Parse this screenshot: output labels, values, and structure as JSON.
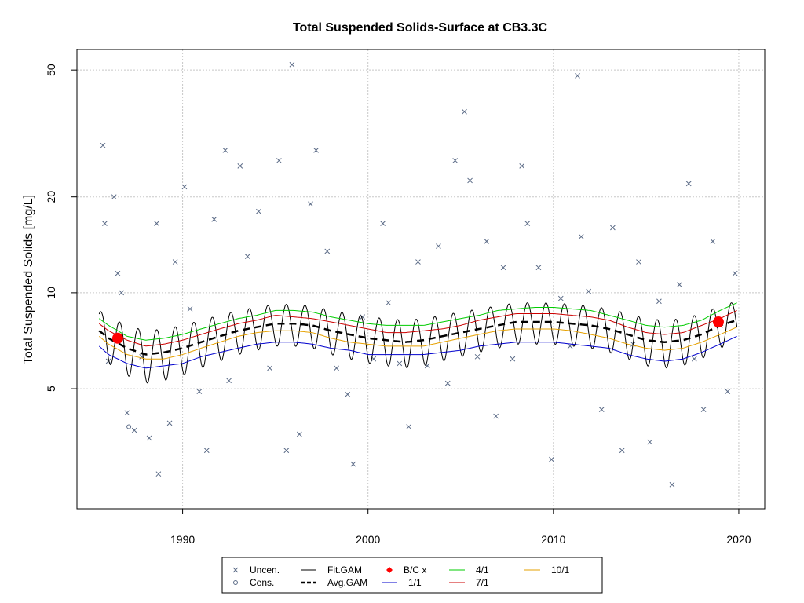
{
  "chart_data": {
    "type": "scatter",
    "title": "Total Suspended Solids-Surface at CB3.3C",
    "xlabel": "",
    "ylabel": "Total Suspended Solids [mg/L]",
    "y_scale": "log",
    "xlim": [
      1984.3,
      2021.4
    ],
    "ylim": [
      2.1,
      58
    ],
    "x_ticks": [
      "1990",
      "2000",
      "2010",
      "2020"
    ],
    "y_ticks": [
      "5",
      "10",
      "20",
      "50"
    ],
    "grid": true,
    "legend_position": "bottom",
    "legend": [
      {
        "label": "Uncen.",
        "symbol": "x",
        "color": "#5a6a86"
      },
      {
        "label": "Cens.",
        "symbol": "circle",
        "color": "#5a6a86"
      },
      {
        "label": "Fit.GAM",
        "symbol": "line",
        "color": "#000000"
      },
      {
        "label": "Avg.GAM",
        "symbol": "dashed-line",
        "color": "#000000"
      },
      {
        "label": "B/C x",
        "symbol": "diamond",
        "color": "#ff0000"
      },
      {
        "label": "1/1",
        "symbol": "line",
        "color": "#0000cd"
      },
      {
        "label": "4/1",
        "symbol": "line",
        "color": "#00cc00"
      },
      {
        "label": "7/1",
        "symbol": "line",
        "color": "#cc0000"
      },
      {
        "label": "10/1",
        "symbol": "line",
        "color": "#e6a100"
      }
    ],
    "series": [
      {
        "name": "Avg.GAM",
        "color": "#000000",
        "x": [
          1985.5,
          1986,
          1987,
          1988,
          1989,
          1990,
          1991,
          1992,
          1993,
          1994,
          1995,
          1996,
          1997,
          1998,
          1999,
          2000,
          2001,
          2002,
          2003,
          2004,
          2005,
          2006,
          2007,
          2008,
          2009,
          2010,
          2011,
          2012,
          2013,
          2014,
          2015,
          2016,
          2017,
          2018,
          2019,
          2019.9
        ],
        "y": [
          7.6,
          7.2,
          6.7,
          6.4,
          6.5,
          6.7,
          7.0,
          7.3,
          7.6,
          7.8,
          8.0,
          8.0,
          7.9,
          7.6,
          7.4,
          7.2,
          7.1,
          7.0,
          7.1,
          7.3,
          7.5,
          7.7,
          7.9,
          8.1,
          8.1,
          8.1,
          8.0,
          7.9,
          7.7,
          7.4,
          7.1,
          7.0,
          7.1,
          7.4,
          7.9,
          8.2
        ]
      },
      {
        "name": "4/1",
        "color": "#00cc00",
        "x": [
          1985.5,
          1986,
          1987,
          1988,
          1989,
          1990,
          1991,
          1992,
          1993,
          1994,
          1995,
          1996,
          1997,
          1998,
          1999,
          2000,
          2001,
          2002,
          2003,
          2004,
          2005,
          2006,
          2007,
          2008,
          2009,
          2010,
          2011,
          2012,
          2013,
          2014,
          2015,
          2016,
          2017,
          2018,
          2019,
          2019.9
        ],
        "y": [
          8.3,
          7.9,
          7.3,
          7.1,
          7.2,
          7.4,
          7.7,
          8.0,
          8.3,
          8.5,
          8.8,
          8.8,
          8.7,
          8.4,
          8.2,
          8.0,
          7.9,
          7.9,
          7.9,
          8.1,
          8.3,
          8.5,
          8.8,
          8.9,
          9.0,
          9.0,
          8.9,
          8.8,
          8.5,
          8.2,
          7.9,
          7.8,
          7.9,
          8.2,
          8.8,
          9.3
        ]
      },
      {
        "name": "7/1",
        "color": "#cc0000",
        "x": [
          1985.5,
          1986,
          1987,
          1988,
          1989,
          1990,
          1991,
          1992,
          1993,
          1994,
          1995,
          1996,
          1997,
          1998,
          1999,
          2000,
          2001,
          2002,
          2003,
          2004,
          2005,
          2006,
          2007,
          2008,
          2009,
          2010,
          2011,
          2012,
          2013,
          2014,
          2015,
          2016,
          2017,
          2018,
          2019,
          2019.9
        ],
        "y": [
          8.0,
          7.6,
          7.1,
          6.8,
          6.9,
          7.1,
          7.4,
          7.7,
          8.0,
          8.2,
          8.5,
          8.4,
          8.3,
          8.1,
          7.9,
          7.7,
          7.5,
          7.5,
          7.6,
          7.7,
          7.9,
          8.2,
          8.4,
          8.6,
          8.6,
          8.6,
          8.5,
          8.4,
          8.2,
          7.8,
          7.5,
          7.4,
          7.5,
          7.9,
          8.3,
          8.8
        ]
      },
      {
        "name": "10/1",
        "color": "#e6a100",
        "x": [
          1985.5,
          1986,
          1987,
          1988,
          1989,
          1990,
          1991,
          1992,
          1993,
          1994,
          1995,
          1996,
          1997,
          1998,
          1999,
          2000,
          2001,
          2002,
          2003,
          2004,
          2005,
          2006,
          2007,
          2008,
          2009,
          2010,
          2011,
          2012,
          2013,
          2014,
          2015,
          2016,
          2017,
          2018,
          2019,
          2019.9
        ],
        "y": [
          7.3,
          6.9,
          6.4,
          6.2,
          6.2,
          6.4,
          6.7,
          7.0,
          7.3,
          7.5,
          7.6,
          7.6,
          7.5,
          7.2,
          7.0,
          6.9,
          6.8,
          6.8,
          6.8,
          7.0,
          7.2,
          7.4,
          7.6,
          7.7,
          7.7,
          7.7,
          7.6,
          7.4,
          7.2,
          6.9,
          6.7,
          6.6,
          6.7,
          7.0,
          7.4,
          7.8
        ]
      },
      {
        "name": "1/1",
        "color": "#0000cd",
        "x": [
          1985.5,
          1986,
          1987,
          1988,
          1989,
          1990,
          1991,
          1992,
          1993,
          1994,
          1995,
          1996,
          1997,
          1998,
          1999,
          2000,
          2001,
          2002,
          2003,
          2004,
          2005,
          2006,
          2007,
          2008,
          2009,
          2010,
          2011,
          2012,
          2013,
          2014,
          2015,
          2016,
          2017,
          2018,
          2019,
          2019.9
        ],
        "y": [
          6.8,
          6.4,
          6.0,
          5.8,
          5.9,
          6.0,
          6.3,
          6.5,
          6.7,
          6.9,
          7.0,
          7.0,
          6.9,
          6.7,
          6.6,
          6.4,
          6.4,
          6.4,
          6.4,
          6.5,
          6.6,
          6.8,
          6.9,
          7.0,
          7.0,
          7.0,
          6.9,
          6.8,
          6.7,
          6.4,
          6.2,
          6.1,
          6.2,
          6.5,
          6.9,
          7.3
        ]
      }
    ],
    "fit_gam": {
      "name": "Fit.GAM",
      "color": "#000000",
      "seasonal_amplitude": 1.2,
      "seasonal_cycles_per_year": 1
    },
    "bc_points": {
      "name": "B/C x",
      "color": "#ff0000",
      "x": [
        1986.5,
        2018.9
      ],
      "y": [
        7.2,
        8.1
      ]
    },
    "uncensored": {
      "color": "#5a6a86",
      "x": [
        1985.7,
        1985.8,
        1986.0,
        1986.3,
        1986.5,
        1986.7,
        1987.0,
        1987.4,
        1987.8,
        1988.2,
        1988.6,
        1988.7,
        1989.3,
        1989.6,
        1990.1,
        1990.4,
        1990.9,
        1991.3,
        1991.7,
        1992.3,
        1992.5,
        1993.1,
        1993.5,
        1994.1,
        1994.7,
        1995.2,
        1995.6,
        1995.9,
        1996.3,
        1996.9,
        1997.2,
        1997.8,
        1998.3,
        1998.9,
        1999.2,
        1999.7,
        2000.3,
        2000.8,
        2001.1,
        2001.7,
        2002.2,
        2002.7,
        2003.2,
        2003.8,
        2004.3,
        2004.7,
        2005.2,
        2005.5,
        2005.9,
        2006.4,
        2006.9,
        2007.3,
        2007.8,
        2008.3,
        2008.6,
        2009.2,
        2009.9,
        2010.4,
        2010.9,
        2011.3,
        2011.5,
        2011.9,
        2012.6,
        2013.2,
        2013.7,
        2014.3,
        2014.6,
        2015.2,
        2015.7,
        2016.4,
        2016.8,
        2017.3,
        2017.6,
        2018.1,
        2018.6,
        2019.0,
        2019.4,
        2019.8
      ],
      "y": [
        29,
        16.5,
        6.1,
        20,
        11.5,
        10.0,
        4.2,
        3.7,
        6.3,
        3.5,
        16.5,
        2.7,
        3.9,
        12.5,
        21.5,
        8.9,
        4.9,
        3.2,
        17.0,
        28,
        5.3,
        25,
        13.0,
        18.0,
        5.8,
        26,
        3.2,
        52,
        3.6,
        19,
        28,
        13.5,
        5.8,
        4.8,
        2.9,
        8.4,
        6.2,
        16.5,
        9.3,
        6.0,
        3.8,
        12.5,
        5.9,
        14.0,
        5.2,
        26,
        37,
        22.5,
        6.3,
        14.5,
        4.1,
        12.0,
        6.2,
        25,
        16.5,
        12.0,
        3.0,
        9.6,
        6.8,
        48,
        15.0,
        10.1,
        4.3,
        16.0,
        3.2,
        6.9,
        12.5,
        3.4,
        9.4,
        2.5,
        10.6,
        22,
        6.2,
        4.3,
        14.5,
        7.9,
        4.9,
        11.5
      ]
    },
    "censored": {
      "color": "#5a6a86",
      "x": [
        1987.1
      ],
      "y": [
        3.8
      ]
    }
  }
}
